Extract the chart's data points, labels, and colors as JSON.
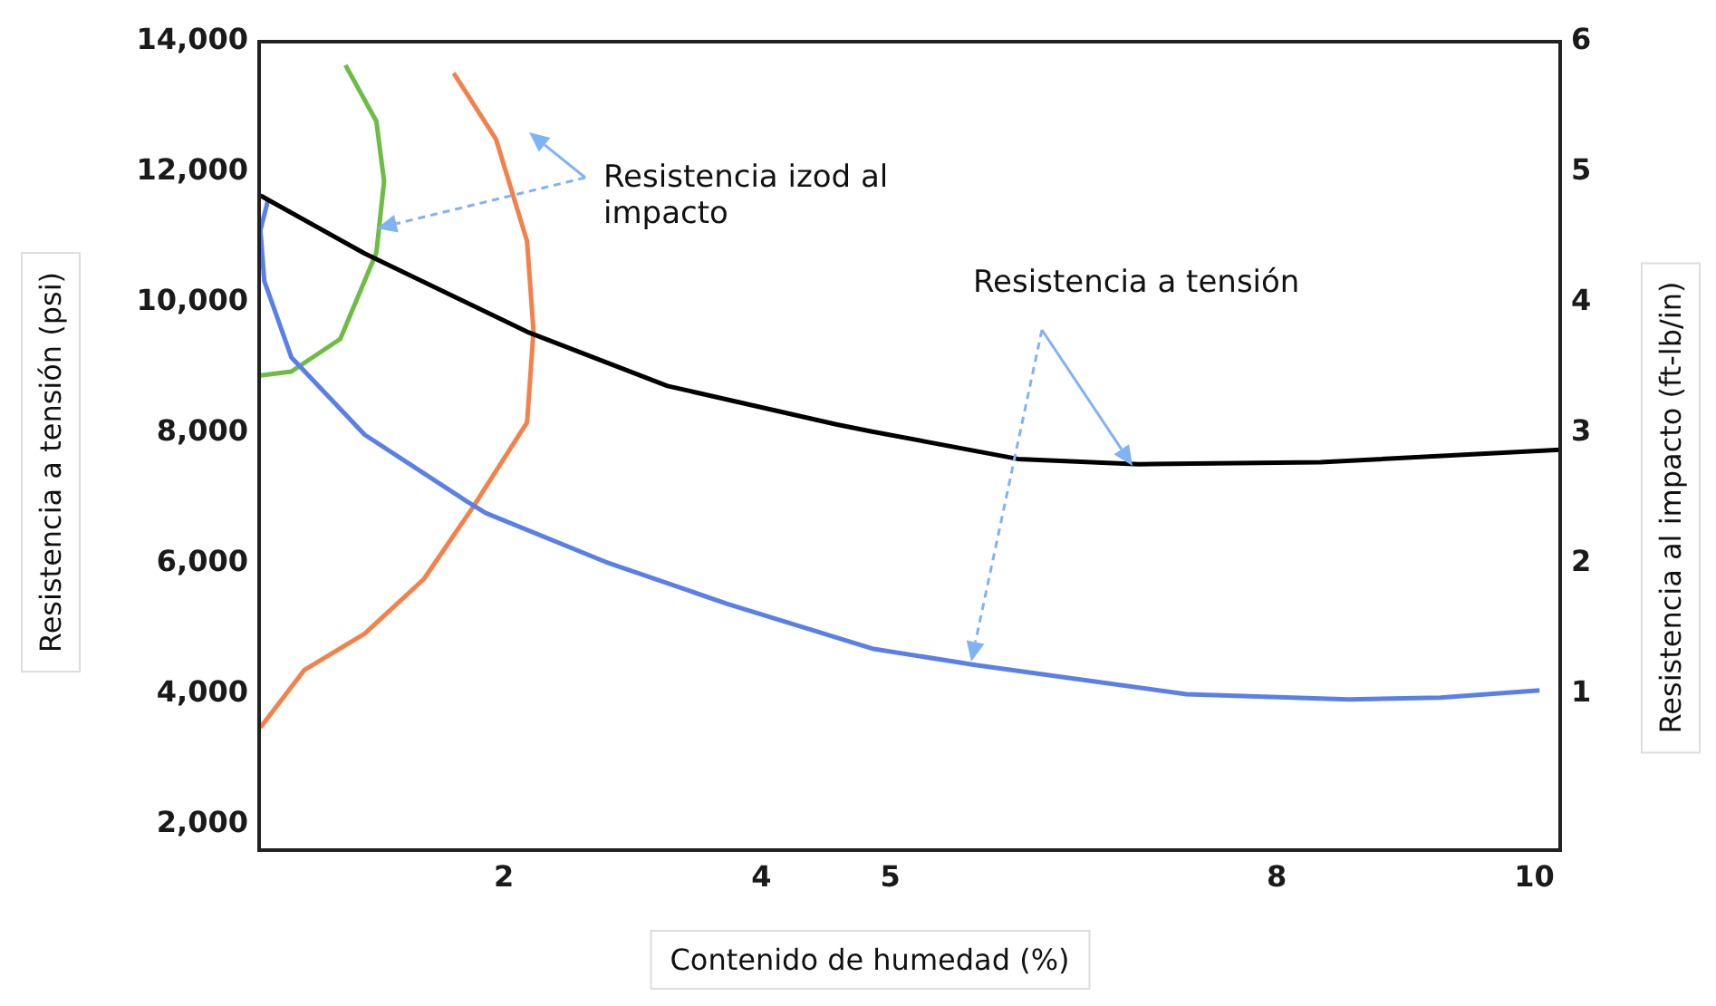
{
  "chart_data": {
    "type": "line",
    "xlabel": "Contenido de humedad (%)",
    "ylabel": "Resistencia a tensión (psi)",
    "y2label": "Resistencia al impacto (ft-lb/in)",
    "xlim": [
      0.1,
      10.2
    ],
    "xticks": [
      2,
      4,
      5,
      8,
      10
    ],
    "ylim": [
      1600,
      14000
    ],
    "yticks": [
      {
        "value": 2000,
        "label": "2,000"
      },
      {
        "value": 4000,
        "label": "4,000"
      },
      {
        "value": 6000,
        "label": "6,000"
      },
      {
        "value": 8000,
        "label": "8,000"
      },
      {
        "value": 10000,
        "label": "10,000"
      },
      {
        "value": 12000,
        "label": "12,000"
      },
      {
        "value": 14000,
        "label": "14,000"
      }
    ],
    "y2lim": [
      -0.2,
      6
    ],
    "y2ticks": [
      1,
      2,
      3,
      4,
      5,
      6
    ],
    "grid": false,
    "legend": false,
    "annotations": [
      "Resistencia izod al impacto",
      "Resistencia a tensión"
    ],
    "series": [
      {
        "color": "#000000",
        "x": [
          0.11,
          0.92,
          2.18,
          3.27,
          4.58,
          4.86,
          5.99,
          6.93,
          8.34,
          10.2
        ],
        "values": [
          11640,
          10750,
          9550,
          8720,
          8130,
          8020,
          7600,
          7520,
          7550,
          7740
        ]
      },
      {
        "color": "#5b7fe8",
        "x": [
          0.17,
          0.11,
          0.14,
          0.35,
          0.92,
          1.72,
          1.86,
          2.79,
          3.73,
          4.86,
          5.66,
          7.3,
          8.56,
          9.27,
          10.04
        ],
        "values": [
          11580,
          11110,
          10330,
          9160,
          7970,
          6940,
          6770,
          6020,
          5380,
          4690,
          4440,
          3990,
          3910,
          3940,
          4050
        ]
      },
      {
        "color": "#6dbd45",
        "axis": "y2",
        "x": [
          0.11,
          0.35,
          0.73,
          1.01,
          1.07,
          1.01,
          0.77
        ],
        "values": [
          3.44,
          3.47,
          3.72,
          4.38,
          4.93,
          5.39,
          5.82
        ]
      },
      {
        "color": "#f4804a",
        "axis": "y2",
        "x": [
          0.11,
          0.45,
          0.92,
          1.38,
          1.76,
          2.18,
          2.23,
          2.18,
          1.94,
          1.61
        ],
        "values": [
          0.74,
          1.18,
          1.46,
          1.88,
          2.43,
          3.08,
          3.78,
          4.47,
          5.25,
          5.76
        ]
      }
    ]
  }
}
